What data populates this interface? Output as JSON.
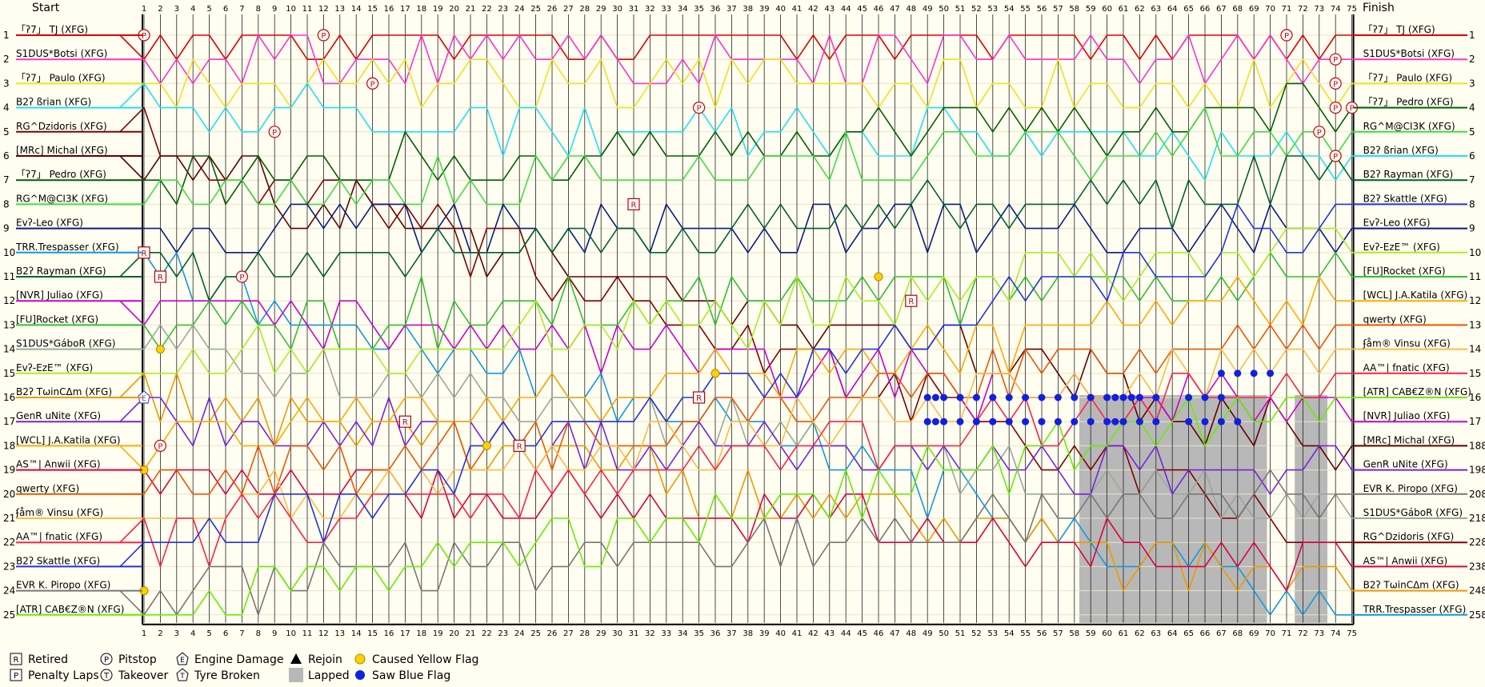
{
  "chart_data": {
    "type": "line",
    "title": "",
    "start_label": "Start",
    "finish_label": "Finish",
    "laps": 75,
    "positions": 25,
    "start_grid": [
      {
        "pos": 1,
        "driver": "「ʔ7」 TJ (XFG)",
        "color": "#e00000"
      },
      {
        "pos": 2,
        "driver": "S1DUS*Botsi (XFG)",
        "color": "#ff33cc"
      },
      {
        "pos": 3,
        "driver": "「ʔ7」 Paulo (XFG)",
        "color": "#f0e020"
      },
      {
        "pos": 4,
        "driver": "B2ʔ ßrian (XFG)",
        "color": "#20e0f0"
      },
      {
        "pos": 5,
        "driver": "RG^Dzidoris (XFG)",
        "color": "#800000"
      },
      {
        "pos": 6,
        "driver": "[MRc] Michal (XFG)",
        "color": "#600000"
      },
      {
        "pos": 7,
        "driver": "「ʔ7」 Pedro (XFG)",
        "color": "#006000"
      },
      {
        "pos": 8,
        "driver": "RG^M@CI3K (XFG)",
        "color": "#40dd40"
      },
      {
        "pos": 9,
        "driver": "Evʔ-Leo (XFG)",
        "color": "#0a1a80"
      },
      {
        "pos": 10,
        "driver": "TRR.Trespasser (XFG)",
        "color": "#1099dd"
      },
      {
        "pos": 11,
        "driver": "B2ʔ Rayman (XFG)",
        "color": "#006030"
      },
      {
        "pos": 12,
        "driver": "[NVR] Juliao (XFG)",
        "color": "#cc00cc"
      },
      {
        "pos": 13,
        "driver": "[FU]Rocket (XFG)",
        "color": "#30c030"
      },
      {
        "pos": 14,
        "driver": "S1DUS*GáboR (XFG)",
        "color": "#99aa99"
      },
      {
        "pos": 15,
        "driver": "Evʔ-EzE™ (XFG)",
        "color": "#aaee22"
      },
      {
        "pos": 16,
        "driver": "B2ʔ TωinCΔm (XFG)",
        "color": "#ee9900"
      },
      {
        "pos": 17,
        "driver": "GenR uNite (XFG)",
        "color": "#7722dd"
      },
      {
        "pos": 18,
        "driver": "[WCL] J.A.Katila (XFG)",
        "color": "#ffaa00"
      },
      {
        "pos": 19,
        "driver": "AS™| Anwii (XFG)",
        "color": "#dd0044"
      },
      {
        "pos": 20,
        "driver": "qwerty (XFG)",
        "color": "#ee5500"
      },
      {
        "pos": 21,
        "driver": "ʄåm® Vinsu (XFG)",
        "color": "#ffbb44"
      },
      {
        "pos": 22,
        "driver": "AA™| fnatic (XFG)",
        "color": "#ff2244"
      },
      {
        "pos": 23,
        "driver": "B2ʔ Skattle (XFG)",
        "color": "#2233dd"
      },
      {
        "pos": 24,
        "driver": "EVR K. Piropo (XFG)",
        "color": "#777777"
      },
      {
        "pos": 25,
        "driver": "[ATR] CAB€Z®N (XFG)",
        "color": "#66ee00"
      }
    ],
    "finish_order": [
      {
        "pos": 1,
        "driver": "「ʔ7」 TJ (XFG)",
        "color": "#e00000"
      },
      {
        "pos": 2,
        "driver": "S1DUS*Botsi (XFG)",
        "color": "#ff33cc"
      },
      {
        "pos": 3,
        "driver": "「ʔ7」 Paulo (XFG)",
        "color": "#f0e020"
      },
      {
        "pos": 4,
        "driver": "「ʔ7」 Pedro (XFG)",
        "color": "#006000"
      },
      {
        "pos": 5,
        "driver": "RG^M@CI3K (XFG)",
        "color": "#40dd40"
      },
      {
        "pos": 6,
        "driver": "B2ʔ ßrian (XFG)",
        "color": "#20e0f0"
      },
      {
        "pos": 7,
        "driver": "B2ʔ Rayman (XFG)",
        "color": "#006030"
      },
      {
        "pos": 8,
        "driver": "B2ʔ Skattle (XFG)",
        "color": "#2233dd"
      },
      {
        "pos": 9,
        "driver": "Evʔ-Leo (XFG)",
        "color": "#0a1a80"
      },
      {
        "pos": 10,
        "driver": "Evʔ-EzE™ (XFG)",
        "color": "#aaee22"
      },
      {
        "pos": 11,
        "driver": "[FU]Rocket (XFG)",
        "color": "#30c030"
      },
      {
        "pos": 12,
        "driver": "[WCL] J.A.Katila (XFG)",
        "color": "#ffaa00"
      },
      {
        "pos": 13,
        "driver": "qwerty (XFG)",
        "color": "#ee5500"
      },
      {
        "pos": 14,
        "driver": "ʄåm® Vinsu (XFG)",
        "color": "#ffbb44"
      },
      {
        "pos": 15,
        "driver": "AA™| fnatic (XFG)",
        "color": "#ff2244"
      },
      {
        "pos": 16,
        "driver": "[ATR] CAB€Z®N (XFG)",
        "color": "#66ee00"
      },
      {
        "pos": 17,
        "driver": "[NVR] Juliao (XFG)",
        "color": "#cc00cc"
      },
      {
        "pos": 18,
        "driver": "[MRc] Michal (XFG)",
        "color": "#600000"
      },
      {
        "pos": 19,
        "driver": "GenR uNite (XFG)",
        "color": "#7722dd"
      },
      {
        "pos": 20,
        "driver": "EVR K. Piropo (XFG)",
        "color": "#777777"
      },
      {
        "pos": 21,
        "driver": "S1DUS*GáboR (XFG)",
        "color": "#99aa99"
      },
      {
        "pos": 22,
        "driver": "RG^Dzidoris (XFG)",
        "color": "#800000"
      },
      {
        "pos": 23,
        "driver": "AS™| Anwii (XFG)",
        "color": "#dd0044"
      },
      {
        "pos": 24,
        "driver": "B2ʔ TωinCΔm (XFG)",
        "color": "#ee9900"
      },
      {
        "pos": 25,
        "driver": "TRR.Trespasser (XFG)",
        "color": "#1099dd"
      }
    ],
    "finish_suffix": {
      "18": "8",
      "19": "8",
      "20": "8",
      "21": "8",
      "22": "8",
      "23": "8",
      "24": "8",
      "25": "8"
    },
    "lapped_laps": [
      [
        58.3,
        69.8
      ],
      [
        71.5,
        73.5
      ]
    ],
    "events": [
      {
        "type": "pitstop",
        "lap": 1,
        "pos": 1
      },
      {
        "type": "pitstop",
        "lap": 12,
        "pos": 1
      },
      {
        "type": "pitstop",
        "lap": 15,
        "pos": 3
      },
      {
        "type": "pitstop",
        "lap": 9,
        "pos": 5
      },
      {
        "type": "pitstop",
        "lap": 7,
        "pos": 11
      },
      {
        "type": "pitstop",
        "lap": 2,
        "pos": 18
      },
      {
        "type": "pitstop",
        "lap": 35,
        "pos": 4
      },
      {
        "type": "pitstop",
        "lap": 71,
        "pos": 1
      },
      {
        "type": "pitstop",
        "lap": 74,
        "pos": 2
      },
      {
        "type": "pitstop",
        "lap": 74,
        "pos": 3
      },
      {
        "type": "pitstop",
        "lap": 74,
        "pos": 4
      },
      {
        "type": "pitstop",
        "lap": 75,
        "pos": 4
      },
      {
        "type": "pitstop",
        "lap": 73,
        "pos": 5
      },
      {
        "type": "pitstop",
        "lap": 74,
        "pos": 6
      },
      {
        "type": "retired",
        "lap": 1,
        "pos": 10
      },
      {
        "type": "retired",
        "lap": 2,
        "pos": 11
      },
      {
        "type": "retired",
        "lap": 31,
        "pos": 8
      },
      {
        "type": "retired",
        "lap": 17,
        "pos": 17
      },
      {
        "type": "retired",
        "lap": 24,
        "pos": 18
      },
      {
        "type": "retired",
        "lap": 48,
        "pos": 12
      },
      {
        "type": "retired",
        "lap": 35,
        "pos": 16
      },
      {
        "type": "engine",
        "lap": 1,
        "pos": 16
      },
      {
        "type": "yellow",
        "lap": 2,
        "pos": 14
      },
      {
        "type": "yellow",
        "lap": 1,
        "pos": 19
      },
      {
        "type": "yellow",
        "lap": 1,
        "pos": 24
      },
      {
        "type": "yellow",
        "lap": 22,
        "pos": 18
      },
      {
        "type": "yellow",
        "lap": 46,
        "pos": 11
      },
      {
        "type": "yellow",
        "lap": 36,
        "pos": 15
      }
    ],
    "blue_flags": [
      {
        "pos": 16,
        "laps": [
          49,
          49.5,
          50,
          51,
          52,
          53,
          54,
          55,
          56,
          57,
          58,
          59,
          60,
          60.5,
          61,
          61.5,
          62,
          63,
          65,
          66,
          67
        ]
      },
      {
        "pos": 17,
        "laps": [
          49,
          49.5,
          50,
          51,
          52,
          53,
          54,
          55,
          56,
          57,
          58,
          59,
          60,
          60.5,
          61,
          62,
          63,
          65,
          66,
          67,
          68
        ]
      },
      {
        "pos": 15,
        "laps": [
          67,
          68,
          69,
          70
        ]
      }
    ],
    "legend": [
      {
        "symbol": "R",
        "label": "Retired",
        "shape": "square"
      },
      {
        "symbol": "P",
        "label": "Pitstop",
        "shape": "circle"
      },
      {
        "symbol": "E",
        "label": "Engine Damage",
        "shape": "pentagon"
      },
      {
        "symbol": "▲",
        "label": "Rejoin",
        "shape": "triangle"
      },
      {
        "symbol": "●",
        "label": "Caused Yellow Flag",
        "shape": "yellow-dot"
      },
      {
        "symbol": "P",
        "label": "Penalty Laps",
        "shape": "square"
      },
      {
        "symbol": "T",
        "label": "Takeover",
        "shape": "circle"
      },
      {
        "symbol": "T",
        "label": "Tyre Broken",
        "shape": "pentagon"
      },
      {
        "symbol": "■",
        "label": "Lapped",
        "shape": "gray-block"
      },
      {
        "symbol": "●",
        "label": "Saw Blue Flag",
        "shape": "blue-dot"
      }
    ],
    "grid": true
  }
}
